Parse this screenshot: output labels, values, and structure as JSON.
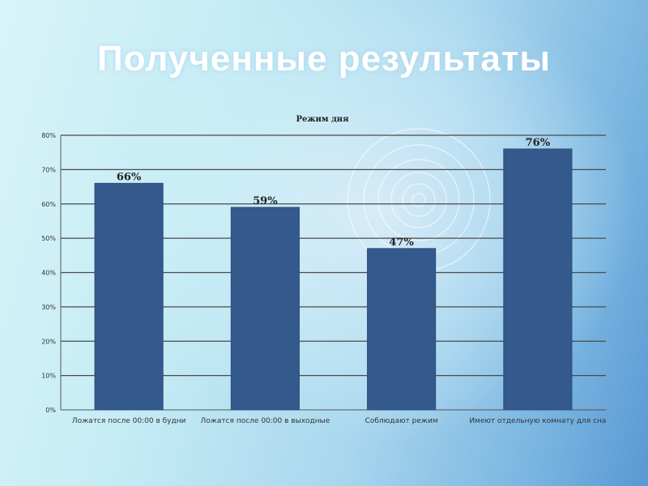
{
  "slide": {
    "title": "Полученные результаты"
  },
  "chart_data": {
    "type": "bar",
    "title": "Режим дня",
    "categories": [
      "Ложатся после 00:00 в будни",
      "Ложатся после 00:00 в выходные",
      "Соблюдают режим",
      "Имеют отдельную комнату для сна"
    ],
    "values": [
      66,
      59,
      47,
      76
    ],
    "data_labels": [
      "66%",
      "59%",
      "47%",
      "76%"
    ],
    "y_ticks": [
      "0%",
      "10%",
      "20%",
      "30%",
      "40%",
      "50%",
      "60%",
      "70%",
      "80%"
    ],
    "ylim": [
      0,
      80
    ],
    "grid": true,
    "legend": "none",
    "bar_color": "#34598c"
  }
}
